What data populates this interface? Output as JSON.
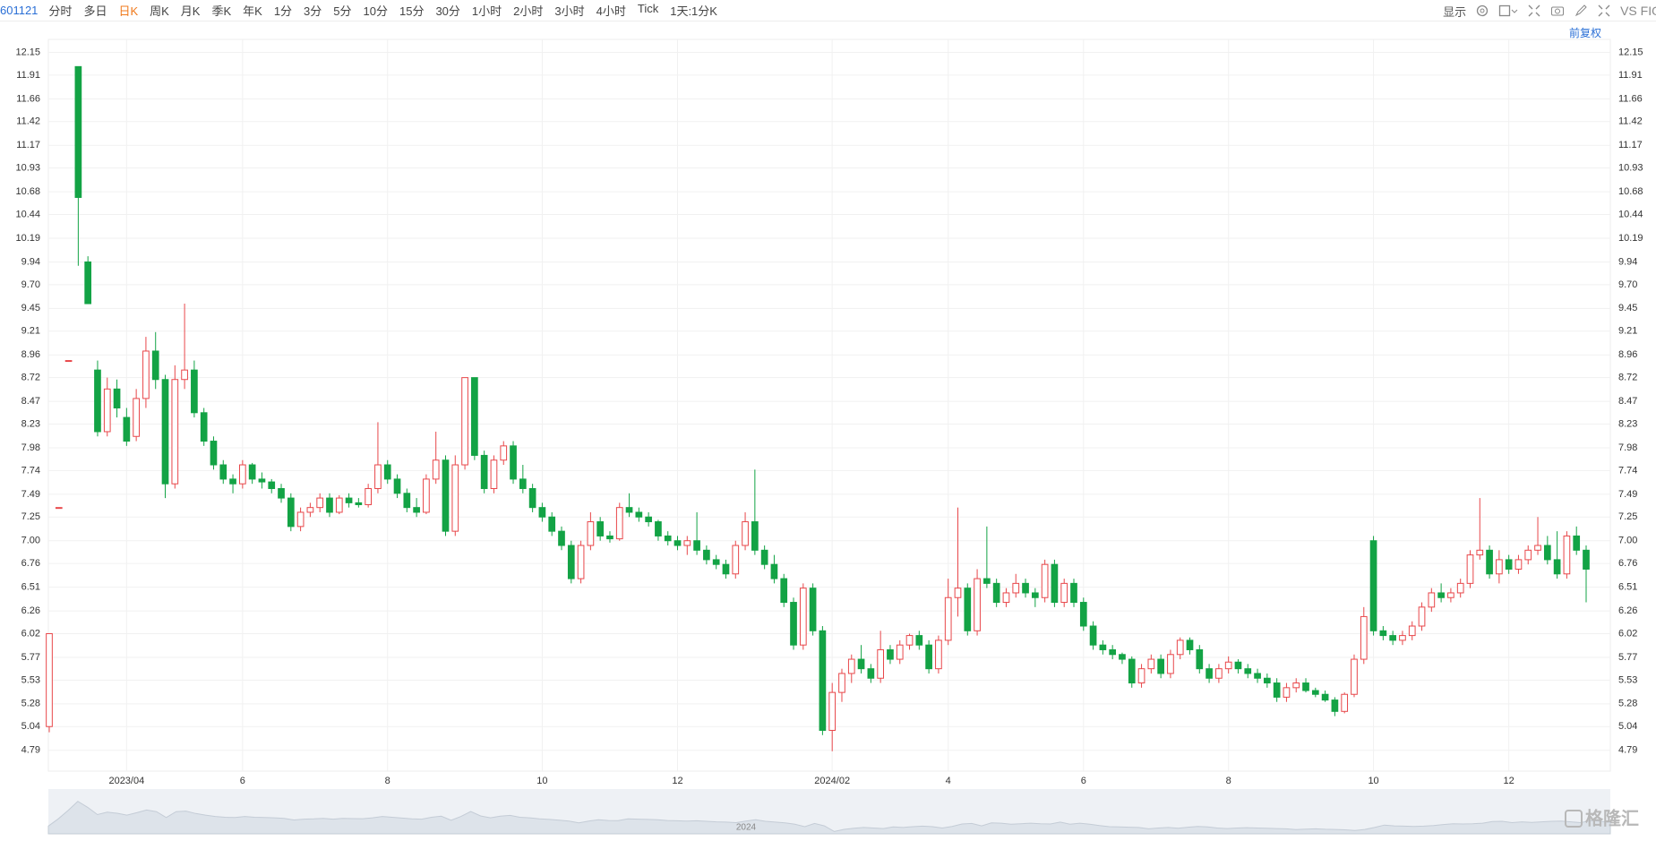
{
  "toolbar": {
    "code": "601121",
    "items": [
      "分时",
      "多日",
      "日K",
      "周K",
      "月K",
      "季K",
      "年K",
      "1分",
      "3分",
      "5分",
      "10分",
      "15分",
      "30分",
      "1小时",
      "2小时",
      "3小时",
      "4小时",
      "Tick",
      "1天:1分K"
    ],
    "active": 2,
    "display": "显示",
    "compare": "VS FIO",
    "adjust": "前复权"
  },
  "navigator_label": "2024",
  "watermark": "格隆汇",
  "chart_data": {
    "type": "candlestick",
    "up_color": "#e8474a",
    "down_color": "#13a345",
    "grid": true,
    "ylim": [
      4.57,
      12.23
    ],
    "yticks": [
      12.15,
      11.91,
      11.66,
      11.42,
      11.17,
      10.93,
      10.68,
      10.44,
      10.19,
      9.94,
      {
        "value": 9.7,
        "label": "9.70"
      },
      9.45,
      9.21,
      8.96,
      8.72,
      8.47,
      8.23,
      7.98,
      7.74,
      7.49,
      7.25,
      {
        "value": 7,
        "label": "7.00"
      },
      6.76,
      6.51,
      6.26,
      6.02,
      5.77,
      5.53,
      5.28,
      5.04,
      4.79
    ],
    "categories": [
      null,
      null,
      null,
      null,
      null,
      null,
      null,
      null,
      "2023/04",
      null,
      null,
      null,
      null,
      null,
      null,
      null,
      null,
      null,
      null,
      null,
      "6",
      null,
      null,
      null,
      null,
      null,
      null,
      null,
      null,
      null,
      null,
      null,
      null,
      null,
      null,
      "8",
      null,
      null,
      null,
      null,
      null,
      null,
      null,
      null,
      null,
      null,
      null,
      null,
      null,
      null,
      null,
      "10",
      null,
      null,
      null,
      null,
      null,
      null,
      null,
      null,
      null,
      null,
      null,
      null,
      null,
      "12",
      null,
      null,
      null,
      null,
      null,
      null,
      null,
      null,
      null,
      null,
      null,
      null,
      null,
      null,
      null,
      "2024/02",
      null,
      null,
      null,
      null,
      null,
      null,
      null,
      null,
      null,
      null,
      null,
      "4",
      null,
      null,
      null,
      null,
      null,
      null,
      null,
      null,
      null,
      null,
      null,
      null,
      null,
      "6",
      null,
      null,
      null,
      null,
      null,
      null,
      null,
      null,
      null,
      null,
      null,
      null,
      null,
      null,
      "8",
      null,
      null,
      null,
      null,
      null,
      null,
      null,
      null,
      null,
      null,
      null,
      null,
      null,
      null,
      "10",
      null,
      null,
      null,
      null,
      null,
      null,
      null,
      null,
      null,
      null,
      null,
      null,
      null,
      "12",
      null,
      null,
      null,
      null,
      null,
      null,
      null,
      null
    ],
    "open": [
      5.04,
      7.35,
      8.9,
      12,
      9.94,
      8.8,
      8.15,
      8.6,
      8.3,
      8.1,
      8.5,
      9,
      8.7,
      7.6,
      8.7,
      8.8,
      8.35,
      8.05,
      7.8,
      7.65,
      7.6,
      7.8,
      7.65,
      7.62,
      7.55,
      7.45,
      7.15,
      7.3,
      7.35,
      7.45,
      7.3,
      7.45,
      7.4,
      7.38,
      7.55,
      7.8,
      7.65,
      7.5,
      7.35,
      7.3,
      7.65,
      7.85,
      7.1,
      7.8,
      8.72,
      7.9,
      7.55,
      7.85,
      8,
      7.65,
      7.55,
      7.35,
      7.25,
      7.1,
      6.95,
      6.6,
      6.95,
      7.2,
      7.05,
      7.02,
      7.35,
      7.3,
      7.25,
      7.2,
      7.05,
      7,
      6.95,
      7,
      6.9,
      6.8,
      6.75,
      6.65,
      6.95,
      7.2,
      6.9,
      6.75,
      6.6,
      6.35,
      5.9,
      6.5,
      6.05,
      5,
      5.4,
      5.6,
      5.75,
      5.65,
      5.55,
      5.85,
      5.75,
      5.9,
      6,
      5.9,
      5.65,
      5.95,
      6.4,
      6.5,
      6.05,
      6.6,
      6.55,
      6.35,
      6.45,
      6.55,
      6.45,
      6.4,
      6.75,
      6.35,
      6.55,
      6.35,
      6.1,
      5.9,
      5.85,
      5.8,
      5.75,
      5.5,
      5.65,
      5.75,
      5.6,
      5.8,
      5.95,
      5.85,
      5.65,
      5.55,
      5.65,
      5.72,
      5.65,
      5.6,
      5.55,
      5.5,
      5.35,
      5.45,
      5.5,
      5.42,
      5.38,
      5.32,
      5.2,
      5.38,
      5.75,
      7,
      6.05,
      6,
      5.95,
      6,
      6.1,
      6.3,
      6.45,
      6.4,
      6.45,
      6.55,
      6.85,
      6.9,
      6.65,
      6.8,
      6.7,
      6.8,
      6.9,
      6.95,
      6.8,
      6.65,
      7.05,
      6.9
    ],
    "high": [
      6.02,
      7.35,
      8.9,
      12,
      10,
      8.9,
      8.72,
      8.7,
      8.4,
      8.6,
      9.15,
      9.2,
      8.75,
      8.85,
      9.5,
      8.9,
      8.4,
      8.1,
      7.85,
      7.7,
      7.85,
      7.82,
      7.72,
      7.65,
      7.6,
      7.5,
      7.35,
      7.4,
      7.5,
      7.5,
      7.48,
      7.5,
      7.45,
      7.6,
      8.25,
      7.85,
      7.7,
      7.55,
      7.45,
      7.7,
      8.15,
      7.9,
      7.9,
      8.72,
      8.72,
      7.95,
      7.9,
      8.05,
      8.05,
      7.8,
      7.6,
      7.4,
      7.3,
      7.15,
      7,
      7,
      7.3,
      7.25,
      7.1,
      7.4,
      7.5,
      7.35,
      7.3,
      7.22,
      7.1,
      7.05,
      7.05,
      7.3,
      6.95,
      6.85,
      6.8,
      7,
      7.3,
      7.75,
      6.95,
      6.85,
      6.65,
      6.4,
      6.55,
      6.55,
      6.1,
      5.5,
      5.65,
      5.8,
      5.9,
      5.7,
      6.05,
      5.9,
      5.95,
      6.02,
      6.05,
      5.95,
      6,
      6.6,
      7.35,
      6.55,
      6.7,
      7.15,
      6.6,
      6.5,
      6.65,
      6.6,
      6.5,
      6.8,
      6.8,
      6.6,
      6.6,
      6.4,
      6.15,
      5.95,
      5.9,
      5.82,
      5.78,
      5.7,
      5.8,
      5.8,
      5.85,
      5.98,
      5.98,
      5.9,
      5.7,
      5.7,
      5.78,
      5.75,
      5.7,
      5.65,
      5.6,
      5.55,
      5.5,
      5.55,
      5.55,
      5.45,
      5.42,
      5.35,
      5.4,
      5.8,
      6.3,
      7.05,
      6.1,
      6.05,
      6.05,
      6.15,
      6.35,
      6.5,
      6.55,
      6.5,
      6.6,
      6.9,
      7.45,
      6.95,
      6.9,
      6.85,
      6.85,
      6.95,
      7.25,
      7.05,
      7.1,
      7.1,
      7.15,
      6.95
    ],
    "low": [
      4.98,
      7.35,
      8.9,
      9.9,
      9.5,
      8.1,
      8.1,
      8.3,
      8,
      8.05,
      8.4,
      8.6,
      7.45,
      7.55,
      8.6,
      8.3,
      8,
      7.75,
      7.6,
      7.5,
      7.55,
      7.6,
      7.55,
      7.5,
      7.4,
      7.1,
      7.1,
      7.25,
      7.3,
      7.25,
      7.28,
      7.35,
      7.35,
      7.35,
      7.5,
      7.6,
      7.45,
      7.3,
      7.25,
      7.28,
      7.6,
      7.05,
      7.05,
      7.75,
      7.85,
      7.5,
      7.5,
      7.8,
      7.6,
      7.5,
      7.3,
      7.2,
      7.05,
      6.9,
      6.55,
      6.55,
      6.9,
      7,
      6.98,
      7,
      7.25,
      7.2,
      7.15,
      7,
      6.95,
      6.9,
      6.85,
      6.85,
      6.75,
      6.7,
      6.6,
      6.6,
      6.9,
      6.85,
      6.7,
      6.55,
      6.3,
      5.85,
      5.85,
      6,
      4.95,
      4.78,
      5.3,
      5.5,
      5.6,
      5.5,
      5.5,
      5.7,
      5.7,
      5.85,
      5.85,
      5.6,
      5.6,
      5.9,
      6.2,
      6,
      6,
      6.5,
      6.3,
      6.3,
      6.4,
      6.4,
      6.3,
      6.35,
      6.3,
      6.3,
      6.3,
      6.05,
      5.85,
      5.8,
      5.75,
      5.7,
      5.45,
      5.45,
      5.6,
      5.55,
      5.55,
      5.75,
      5.8,
      5.6,
      5.5,
      5.5,
      5.6,
      5.6,
      5.55,
      5.5,
      5.45,
      5.3,
      5.3,
      5.4,
      5.4,
      5.35,
      5.3,
      5.15,
      5.18,
      5.35,
      5.7,
      6,
      5.95,
      5.9,
      5.9,
      5.95,
      6.05,
      6.25,
      6.35,
      6.35,
      6.4,
      6.5,
      6.8,
      6.6,
      6.55,
      6.65,
      6.65,
      6.75,
      6.85,
      6.75,
      6.6,
      6.6,
      6.85,
      6.35
    ],
    "close": [
      6.02,
      7.35,
      8.9,
      10.62,
      9.5,
      8.15,
      8.6,
      8.4,
      8.05,
      8.5,
      9,
      8.7,
      7.6,
      8.7,
      8.8,
      8.35,
      8.05,
      7.8,
      7.65,
      7.6,
      7.8,
      7.65,
      7.62,
      7.55,
      7.45,
      7.15,
      7.3,
      7.35,
      7.45,
      7.3,
      7.45,
      7.4,
      7.38,
      7.55,
      7.8,
      7.65,
      7.5,
      7.35,
      7.3,
      7.65,
      7.85,
      7.1,
      7.8,
      8.72,
      7.9,
      7.55,
      7.85,
      8,
      7.65,
      7.55,
      7.35,
      7.25,
      7.1,
      6.95,
      6.6,
      6.95,
      7.2,
      7.05,
      7.02,
      7.35,
      7.3,
      7.25,
      7.2,
      7.05,
      7,
      6.95,
      7,
      6.9,
      6.8,
      6.75,
      6.65,
      6.95,
      7.2,
      6.9,
      6.75,
      6.6,
      6.35,
      5.9,
      6.5,
      6.05,
      5,
      5.4,
      5.6,
      5.75,
      5.65,
      5.55,
      5.85,
      5.75,
      5.9,
      6,
      5.9,
      5.65,
      5.95,
      6.4,
      6.5,
      6.05,
      6.6,
      6.55,
      6.35,
      6.45,
      6.55,
      6.45,
      6.4,
      6.75,
      6.35,
      6.55,
      6.35,
      6.1,
      5.9,
      5.85,
      5.8,
      5.75,
      5.5,
      5.65,
      5.75,
      5.6,
      5.8,
      5.95,
      5.85,
      5.65,
      5.55,
      5.65,
      5.72,
      5.65,
      5.6,
      5.55,
      5.5,
      5.35,
      5.45,
      5.5,
      5.42,
      5.38,
      5.32,
      5.2,
      5.38,
      5.75,
      6.2,
      6.05,
      6,
      5.95,
      6,
      6.1,
      6.3,
      6.45,
      6.4,
      6.45,
      6.55,
      6.85,
      6.9,
      6.65,
      6.8,
      6.7,
      6.8,
      6.9,
      6.95,
      6.8,
      6.65,
      7.05,
      6.9,
      6.7
    ]
  }
}
